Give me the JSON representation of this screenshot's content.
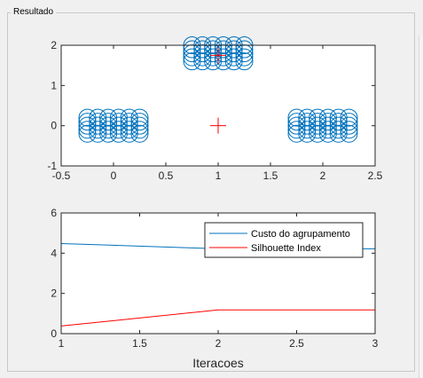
{
  "panel": {
    "title": "Resultado"
  },
  "chart_data": [
    {
      "type": "scatter",
      "title": "",
      "xlabel": "",
      "ylabel": "",
      "xlim": [
        -0.5,
        2.5
      ],
      "ylim": [
        -1,
        2
      ],
      "xticks": [
        "-0.5",
        "0",
        "0.5",
        "1",
        "1.5",
        "2",
        "2.5"
      ],
      "yticks": [
        "-1",
        "0",
        "1",
        "2"
      ],
      "grid": false,
      "series": [
        {
          "marker": "circle",
          "color": "#0072BD",
          "points": [
            [
              -0.25,
              -0.2
            ],
            [
              -0.15,
              -0.2
            ],
            [
              -0.05,
              -0.2
            ],
            [
              0.05,
              -0.2
            ],
            [
              0.15,
              -0.2
            ],
            [
              0.25,
              -0.2
            ],
            [
              -0.25,
              -0.1
            ],
            [
              -0.15,
              -0.1
            ],
            [
              -0.05,
              -0.1
            ],
            [
              0.05,
              -0.1
            ],
            [
              0.15,
              -0.1
            ],
            [
              0.25,
              -0.1
            ],
            [
              -0.25,
              0
            ],
            [
              -0.15,
              0
            ],
            [
              -0.05,
              0
            ],
            [
              0.05,
              0
            ],
            [
              0.15,
              0
            ],
            [
              0.25,
              0
            ],
            [
              -0.25,
              0.1
            ],
            [
              -0.15,
              0.1
            ],
            [
              -0.05,
              0.1
            ],
            [
              0.05,
              0.1
            ],
            [
              0.15,
              0.1
            ],
            [
              0.25,
              0.1
            ],
            [
              -0.25,
              0.2
            ],
            [
              -0.15,
              0.2
            ],
            [
              -0.05,
              0.2
            ],
            [
              0.05,
              0.2
            ],
            [
              0.15,
              0.2
            ],
            [
              0.25,
              0.2
            ],
            [
              0.75,
              1.6
            ],
            [
              0.85,
              1.6
            ],
            [
              0.95,
              1.6
            ],
            [
              1.05,
              1.6
            ],
            [
              1.15,
              1.6
            ],
            [
              1.25,
              1.6
            ],
            [
              0.75,
              1.7
            ],
            [
              0.85,
              1.7
            ],
            [
              0.95,
              1.7
            ],
            [
              1.05,
              1.7
            ],
            [
              1.15,
              1.7
            ],
            [
              1.25,
              1.7
            ],
            [
              0.75,
              1.8
            ],
            [
              0.85,
              1.8
            ],
            [
              0.95,
              1.8
            ],
            [
              1.05,
              1.8
            ],
            [
              1.15,
              1.8
            ],
            [
              1.25,
              1.8
            ],
            [
              0.75,
              1.9
            ],
            [
              0.85,
              1.9
            ],
            [
              0.95,
              1.9
            ],
            [
              1.05,
              1.9
            ],
            [
              1.15,
              1.9
            ],
            [
              1.25,
              1.9
            ],
            [
              0.75,
              2.0
            ],
            [
              0.85,
              2.0
            ],
            [
              0.95,
              2.0
            ],
            [
              1.05,
              2.0
            ],
            [
              1.15,
              2.0
            ],
            [
              1.25,
              2.0
            ],
            [
              1.75,
              -0.2
            ],
            [
              1.85,
              -0.2
            ],
            [
              1.95,
              -0.2
            ],
            [
              2.05,
              -0.2
            ],
            [
              2.15,
              -0.2
            ],
            [
              2.25,
              -0.2
            ],
            [
              1.75,
              -0.1
            ],
            [
              1.85,
              -0.1
            ],
            [
              1.95,
              -0.1
            ],
            [
              2.05,
              -0.1
            ],
            [
              2.15,
              -0.1
            ],
            [
              2.25,
              -0.1
            ],
            [
              1.75,
              0
            ],
            [
              1.85,
              0
            ],
            [
              1.95,
              0
            ],
            [
              2.05,
              0
            ],
            [
              2.15,
              0
            ],
            [
              2.25,
              0
            ],
            [
              1.75,
              0.1
            ],
            [
              1.85,
              0.1
            ],
            [
              1.95,
              0.1
            ],
            [
              2.05,
              0.1
            ],
            [
              2.15,
              0.1
            ],
            [
              2.25,
              0.1
            ],
            [
              1.75,
              0.2
            ],
            [
              1.85,
              0.2
            ],
            [
              1.95,
              0.2
            ],
            [
              2.05,
              0.2
            ],
            [
              2.15,
              0.2
            ],
            [
              2.25,
              0.2
            ]
          ]
        },
        {
          "marker": "plus",
          "color": "#FF0000",
          "points": [
            [
              1,
              1.75
            ],
            [
              1,
              0
            ]
          ]
        }
      ]
    },
    {
      "type": "line",
      "title": "",
      "xlabel": "Iteracoes",
      "ylabel": "",
      "xlim": [
        1,
        3
      ],
      "ylim": [
        0,
        6
      ],
      "xticks": [
        "1",
        "1.5",
        "2",
        "2.5",
        "3"
      ],
      "yticks": [
        "0",
        "2",
        "4",
        "6"
      ],
      "grid": false,
      "legend_position": "top-right",
      "x": [
        1,
        2,
        3
      ],
      "series": [
        {
          "name": "Custo do agrupamento",
          "color": "#0072BD",
          "values": [
            4.48,
            4.22,
            4.22
          ]
        },
        {
          "name": "Silhouette Index",
          "color": "#FF0000",
          "values": [
            0.38,
            1.18,
            1.18
          ]
        }
      ]
    }
  ]
}
